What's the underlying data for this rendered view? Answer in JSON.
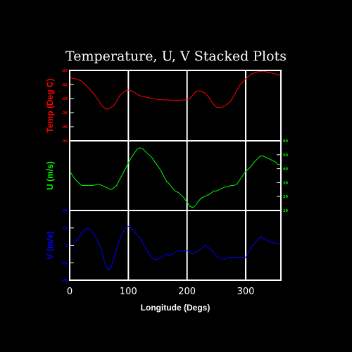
{
  "chart_data": {
    "type": "line",
    "title": "Temperature, U, V Stacked Plots",
    "xlabel": "Longitude (Degs)",
    "xlim": [
      0,
      360
    ],
    "x_ticks": [
      "0",
      "100",
      "200",
      "300"
    ],
    "x_tick_values": [
      0,
      100,
      200,
      300
    ],
    "vertical_gridlines_at": [
      100,
      200,
      300
    ],
    "grid": true,
    "axis_color": "#ffffff",
    "background": "#000000",
    "panels": [
      {
        "ylabel": "Temp (Deg C)",
        "color": "#ff0000",
        "ylim": [
          -30,
          -20
        ],
        "y_ticks": [
          "-30",
          "-28",
          "-26",
          "-24",
          "-22",
          "-20"
        ],
        "y_tick_side": "left",
        "series": [
          {
            "x": [
              0,
              10,
              20,
              30,
              40,
              50,
              55,
              60,
              65,
              70,
              75,
              80,
              85,
              90,
              95,
              100,
              105,
              110,
              115,
              120,
              130,
              140,
              150,
              160,
              170,
              180,
              190,
              195,
              200,
              205,
              210,
              215,
              220,
              225,
              230,
              235,
              240,
              245,
              250,
              255,
              260,
              265,
              270,
              275,
              280,
              285,
              290,
              300,
              310,
              320,
              330,
              340,
              350,
              360
            ],
            "y": [
              -21.0,
              -21.2,
              -21.5,
              -22.3,
              -23.2,
              -24.4,
              -25.0,
              -25.4,
              -25.5,
              -25.3,
              -25.0,
              -24.4,
              -23.6,
              -23.2,
              -22.9,
              -22.8,
              -22.9,
              -23.1,
              -23.4,
              -23.6,
              -23.8,
              -24.0,
              -24.1,
              -24.2,
              -24.2,
              -24.3,
              -24.2,
              -24.2,
              -24.1,
              -24.0,
              -23.5,
              -23.0,
              -22.9,
              -23.0,
              -23.2,
              -23.6,
              -24.2,
              -24.8,
              -25.2,
              -25.3,
              -25.2,
              -25.0,
              -24.7,
              -24.3,
              -23.6,
              -22.8,
              -22.1,
              -21.2,
              -20.5,
              -20.2,
              -20.1,
              -20.3,
              -20.5,
              -20.7
            ]
          }
        ]
      },
      {
        "ylabel": "U (m/s)",
        "color": "#00ff00",
        "ylim": [
          10,
          60
        ],
        "y_ticks": [
          "10",
          "20",
          "30",
          "40",
          "50",
          "60"
        ],
        "y_tick_side": "right",
        "series": [
          {
            "x": [
              0,
              5,
              10,
              15,
              20,
              30,
              40,
              50,
              55,
              60,
              65,
              70,
              75,
              80,
              85,
              90,
              95,
              100,
              105,
              110,
              115,
              120,
              125,
              130,
              135,
              140,
              145,
              150,
              155,
              160,
              165,
              170,
              175,
              180,
              185,
              190,
              195,
              200,
              205,
              210,
              215,
              220,
              225,
              230,
              235,
              240,
              245,
              250,
              255,
              260,
              265,
              270,
              275,
              280,
              285,
              290,
              295,
              300,
              305,
              310,
              315,
              320,
              325,
              330,
              335,
              340,
              345,
              350,
              355,
              360
            ],
            "y": [
              38,
              35,
              32,
              30,
              28,
              28,
              28,
              29,
              28,
              27,
              26,
              25,
              26,
              28,
              32,
              36,
              40,
              44,
              48,
              51,
              54,
              55,
              54,
              52,
              50,
              48,
              45,
              42,
              39,
              35,
              31,
              29,
              26,
              24,
              23,
              21,
              19,
              16,
              13,
              12,
              14,
              17,
              19,
              20,
              21,
              22,
              24,
              24,
              25,
              26,
              27,
              27,
              28,
              28,
              29,
              32,
              35,
              38,
              40,
              42,
              45,
              47,
              49,
              49,
              48,
              47,
              46,
              45,
              43,
              43
            ]
          }
        ]
      },
      {
        "ylabel": "V (m/s)",
        "color": "#0000ff",
        "ylim": [
          -20,
          20
        ],
        "y_ticks": [
          "-20",
          "-10",
          "0",
          "10",
          "20"
        ],
        "y_tick_side": "left",
        "series": [
          {
            "x": [
              0,
              5,
              10,
              15,
              20,
              25,
              30,
              35,
              40,
              45,
              50,
              55,
              60,
              65,
              70,
              75,
              80,
              85,
              90,
              95,
              100,
              105,
              110,
              115,
              120,
              125,
              130,
              135,
              140,
              145,
              150,
              155,
              160,
              165,
              170,
              175,
              180,
              185,
              190,
              195,
              200,
              205,
              210,
              215,
              220,
              225,
              230,
              235,
              240,
              245,
              250,
              255,
              260,
              265,
              270,
              275,
              280,
              285,
              290,
              295,
              300,
              305,
              310,
              315,
              320,
              325,
              330,
              335,
              340,
              345,
              350,
              355,
              360
            ],
            "y": [
              0,
              0,
              2,
              4,
              7,
              9,
              10,
              9,
              7,
              4,
              1,
              -4,
              -10,
              -14,
              -13,
              -8,
              -2,
              3,
              7,
              10,
              11,
              10,
              8,
              6,
              4,
              1,
              -2,
              -5,
              -7,
              -8,
              -8,
              -7,
              -6,
              -5,
              -6,
              -5,
              -4,
              -3,
              -3,
              -3,
              -3,
              -4,
              -5,
              -4,
              -3,
              -2,
              0,
              -1,
              -2,
              -4,
              -6,
              -7,
              -8,
              -8,
              -7,
              -7,
              -7,
              -7,
              -7,
              -7,
              -7,
              -4,
              -1,
              1,
              3,
              5,
              4,
              3,
              2,
              2,
              1,
              1,
              1
            ]
          }
        ]
      }
    ]
  }
}
